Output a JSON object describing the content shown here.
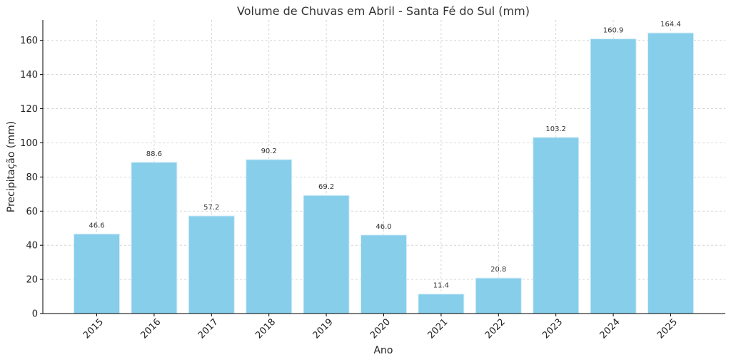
{
  "chart_data": {
    "type": "bar",
    "title": "Volume de Chuvas em Abril - Santa Fé do Sul (mm)",
    "xlabel": "Ano",
    "ylabel": "Precipitação (mm)",
    "categories": [
      "2015",
      "2016",
      "2017",
      "2018",
      "2019",
      "2020",
      "2021",
      "2022",
      "2023",
      "2024",
      "2025"
    ],
    "values": [
      46.6,
      88.6,
      57.2,
      90.2,
      69.2,
      46.0,
      11.4,
      20.8,
      103.2,
      160.9,
      164.4
    ],
    "data_labels": [
      "46.6",
      "88.6",
      "57.2",
      "90.2",
      "69.2",
      "46.0",
      "11.4",
      "20.8",
      "103.2",
      "160.9",
      "164.4"
    ],
    "yticks": [
      0,
      20,
      40,
      60,
      80,
      100,
      120,
      140,
      160
    ],
    "ylim": [
      0,
      172
    ],
    "grid": true,
    "bar_color": "#87CEEB"
  }
}
